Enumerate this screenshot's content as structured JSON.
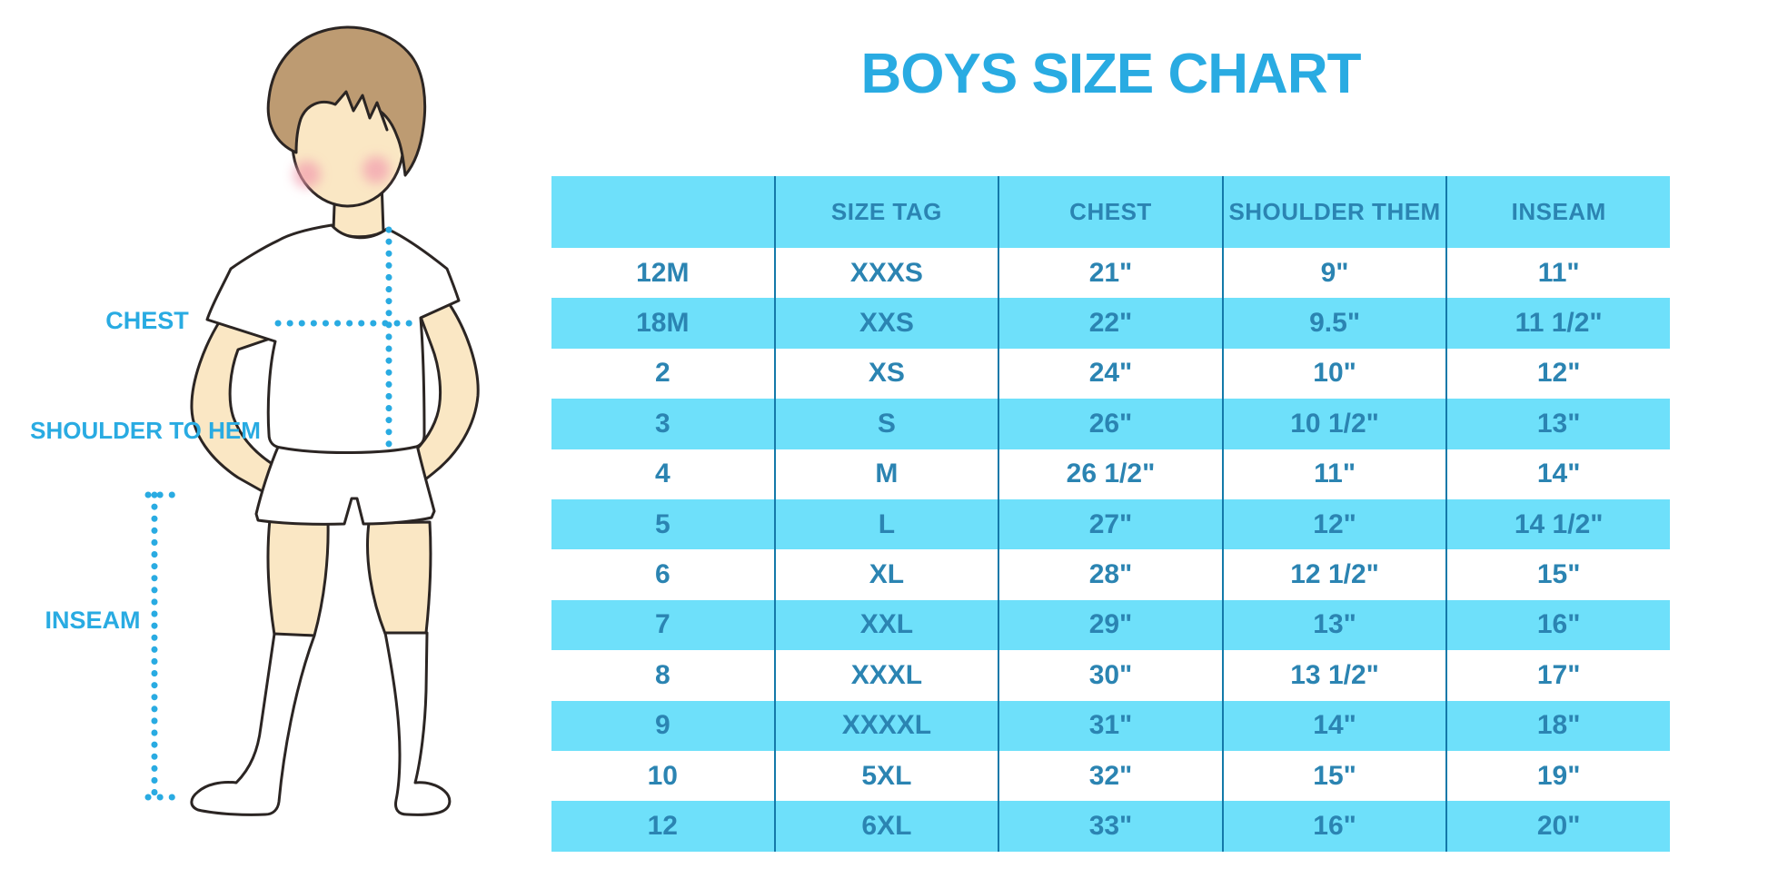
{
  "title": "BOYS SIZE CHART",
  "figure_labels": {
    "chest": "CHEST",
    "shoulder_to_hem": "SHOULDER TO HEM",
    "inseam": "INSEAM"
  },
  "chart_data": {
    "type": "table",
    "title": "BOYS SIZE CHART",
    "columns": [
      "",
      "SIZE TAG",
      "CHEST",
      "SHOULDER THEM",
      "INSEAM"
    ],
    "rows": [
      [
        "12M",
        "XXXS",
        "21\"",
        "9\"",
        "11\""
      ],
      [
        "18M",
        "XXS",
        "22\"",
        "9.5\"",
        "11 1/2\""
      ],
      [
        "2",
        "XS",
        "24\"",
        "10\"",
        "12\""
      ],
      [
        "3",
        "S",
        "26\"",
        "10 1/2\"",
        "13\""
      ],
      [
        "4",
        "M",
        "26 1/2\"",
        "11\"",
        "14\""
      ],
      [
        "5",
        "L",
        "27\"",
        "12\"",
        "14 1/2\""
      ],
      [
        "6",
        "XL",
        "28\"",
        "12 1/2\"",
        "15\""
      ],
      [
        "7",
        "XXL",
        "29\"",
        "13\"",
        "16\""
      ],
      [
        "8",
        "XXXL",
        "30\"",
        "13 1/2\"",
        "17\""
      ],
      [
        "9",
        "XXXXL",
        "31\"",
        "14\"",
        "18\""
      ],
      [
        "10",
        "5XL",
        "32\"",
        "15\"",
        "19\""
      ],
      [
        "12",
        "6XL",
        "33\"",
        "16\"",
        "20\""
      ]
    ],
    "row_striping": "alternating white / cyan starting white",
    "legend_position": "none",
    "grid": "vertical column separators only"
  },
  "colors": {
    "accent": "#29ABE2",
    "stripe": "#6EE0FA",
    "table_text": "#2B84B2",
    "grid_line": "#1479A9",
    "skin": "#FAE7C4",
    "hair": "#BD9B72",
    "cheek": "#F29CAF",
    "outline": "#2B2523"
  }
}
